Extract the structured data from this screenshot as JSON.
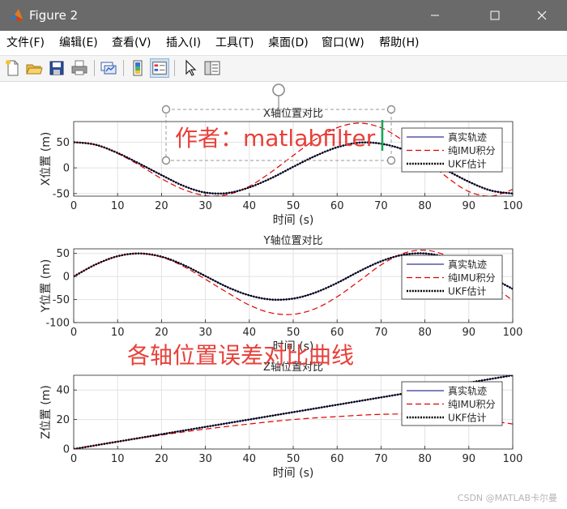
{
  "window": {
    "title": "Figure 2"
  },
  "menu": [
    "文件(F)",
    "编辑(E)",
    "查看(V)",
    "插入(I)",
    "工具(T)",
    "桌面(D)",
    "窗口(W)",
    "帮助(H)"
  ],
  "toolbar_icons": [
    "new-figure-icon",
    "open-file-icon",
    "save-icon",
    "print-icon",
    "link-plot-icon",
    "colorbar-icon",
    "legend-icon",
    "pointer-icon",
    "property-inspector-icon"
  ],
  "annotations": {
    "author": "作者：matlabfilter",
    "caption": "各轴位置误差对比曲线"
  },
  "watermark": "CSDN @MATLAB卡尔曼",
  "colors": {
    "truth": "#00007f",
    "imu": "#e00000",
    "ukf": "#000000",
    "annotation": "#e8403a",
    "titlebar": "#6a6a6a"
  },
  "legend": [
    "真实轨迹",
    "纯IMU积分",
    "UKF估计"
  ],
  "chart_data": [
    {
      "type": "line",
      "title": "X轴位置对比",
      "xlabel": "时间 (s)",
      "ylabel": "X位置 (m)",
      "xlim": [
        0,
        100
      ],
      "ylim": [
        -55,
        90
      ],
      "xticks": [
        0,
        10,
        20,
        30,
        40,
        50,
        60,
        70,
        80,
        90,
        100
      ],
      "yticks": [
        -50,
        0,
        50
      ],
      "grid": true,
      "legend_position": "top-right",
      "x": [
        0,
        5,
        10,
        15,
        20,
        25,
        30,
        35,
        40,
        45,
        50,
        55,
        60,
        65,
        70,
        75,
        80,
        85,
        90,
        95,
        100
      ],
      "series": [
        {
          "name": "真实轨迹",
          "style": "solid",
          "values": [
            50,
            45,
            29,
            8,
            -14,
            -35,
            -48,
            -49,
            -38,
            -20,
            2,
            23,
            40,
            49,
            47,
            36,
            17,
            -5,
            -27,
            -44,
            -50
          ]
        },
        {
          "name": "纯IMU积分",
          "style": "dashed",
          "values": [
            50,
            45,
            28,
            5,
            -21,
            -42,
            -54,
            -52,
            -36,
            -8,
            24,
            55,
            78,
            87,
            78,
            53,
            18,
            -18,
            -46,
            -55,
            -42
          ]
        },
        {
          "name": "UKF估计",
          "style": "dotted",
          "values": [
            50,
            45,
            29,
            8,
            -14,
            -35,
            -48,
            -49,
            -38,
            -20,
            2,
            23,
            40,
            49,
            47,
            36,
            17,
            -5,
            -27,
            -44,
            -50
          ]
        }
      ]
    },
    {
      "type": "line",
      "title": "Y轴位置对比",
      "xlabel": "时间 (s)",
      "ylabel": "Y位置 (m)",
      "xlim": [
        0,
        100
      ],
      "ylim": [
        -100,
        60
      ],
      "xticks": [
        0,
        10,
        20,
        30,
        40,
        50,
        60,
        70,
        80,
        90,
        100
      ],
      "yticks": [
        -100,
        -50,
        0,
        50
      ],
      "grid": true,
      "legend_position": "right",
      "x": [
        0,
        5,
        10,
        15,
        20,
        25,
        30,
        35,
        40,
        45,
        50,
        55,
        60,
        65,
        70,
        75,
        80,
        85,
        90,
        95,
        100
      ],
      "series": [
        {
          "name": "真实轨迹",
          "style": "solid",
          "values": [
            0,
            26,
            44,
            50,
            43,
            25,
            1,
            -23,
            -41,
            -50,
            -48,
            -35,
            -14,
            11,
            33,
            47,
            50,
            41,
            22,
            -2,
            -27
          ]
        },
        {
          "name": "纯IMU积分",
          "style": "dashed",
          "values": [
            0,
            26,
            44,
            50,
            42,
            22,
            -6,
            -35,
            -62,
            -79,
            -82,
            -70,
            -44,
            -10,
            25,
            50,
            57,
            45,
            18,
            -17,
            -52
          ]
        },
        {
          "name": "UKF估计",
          "style": "dotted",
          "values": [
            0,
            26,
            44,
            50,
            43,
            25,
            1,
            -23,
            -41,
            -50,
            -48,
            -35,
            -14,
            11,
            33,
            47,
            50,
            41,
            22,
            -2,
            -27
          ]
        }
      ]
    },
    {
      "type": "line",
      "title": "Z轴位置对比",
      "xlabel": "时间 (s)",
      "ylabel": "Z位置 (m)",
      "xlim": [
        0,
        100
      ],
      "ylim": [
        0,
        50
      ],
      "xticks": [
        0,
        10,
        20,
        30,
        40,
        50,
        60,
        70,
        80,
        90,
        100
      ],
      "yticks": [
        0,
        20,
        40
      ],
      "grid": true,
      "legend_position": "top-right",
      "x": [
        0,
        10,
        20,
        30,
        40,
        50,
        60,
        70,
        80,
        90,
        100
      ],
      "series": [
        {
          "name": "真实轨迹",
          "style": "solid",
          "values": [
            0,
            5,
            10,
            15,
            20,
            25,
            30,
            35,
            40,
            45,
            50
          ]
        },
        {
          "name": "纯IMU积分",
          "style": "dashed",
          "values": [
            0,
            5,
            9.5,
            13.5,
            17,
            20,
            22,
            23.5,
            23.5,
            21,
            17
          ]
        },
        {
          "name": "UKF估计",
          "style": "dotted",
          "values": [
            0,
            5,
            10,
            15,
            20,
            25,
            30,
            35,
            40,
            45,
            50
          ]
        }
      ]
    }
  ]
}
